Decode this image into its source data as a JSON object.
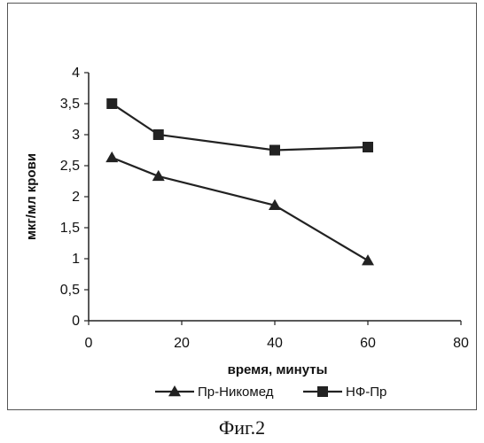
{
  "caption": "Фиг.2",
  "chart_data": {
    "type": "line",
    "xlabel": "время, минуты",
    "ylabel": "мкг/мл крови",
    "xlim": [
      0,
      80
    ],
    "ylim": [
      0,
      4
    ],
    "x_ticks": [
      "0",
      "20",
      "40",
      "60",
      "80"
    ],
    "y_ticks": [
      "0",
      "0,5",
      "1",
      "1,5",
      "2",
      "2,5",
      "3",
      "3,5",
      "4"
    ],
    "x_tick_values": [
      0,
      20,
      40,
      60,
      80
    ],
    "y_tick_values": [
      0,
      0.5,
      1,
      1.5,
      2,
      2.5,
      3,
      3.5,
      4
    ],
    "grid": false,
    "legend_position": "bottom",
    "series": [
      {
        "name": "Пр-Никомед",
        "marker": "triangle",
        "color": "#222222",
        "x": [
          5,
          15,
          40,
          60
        ],
        "y": [
          2.63,
          2.33,
          1.86,
          0.97
        ]
      },
      {
        "name": "НФ-Пр",
        "marker": "square",
        "color": "#222222",
        "x": [
          5,
          15,
          40,
          60
        ],
        "y": [
          3.5,
          3.0,
          2.75,
          2.8
        ]
      }
    ]
  }
}
